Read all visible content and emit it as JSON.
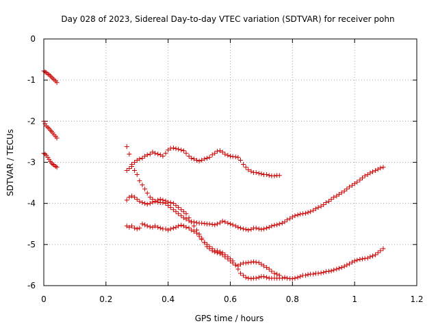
{
  "chart_data": {
    "type": "scatter",
    "title": "Day 028 of 2023, Sidereal Day-to-day VTEC variation (SDTVAR) for receiver pohn",
    "xlabel": "GPS time / hours",
    "ylabel": "SDTVAR / TECUs",
    "xlim": [
      0,
      1.2
    ],
    "ylim": [
      -6,
      0
    ],
    "xticks": [
      0,
      0.2,
      0.4,
      0.6,
      0.8,
      1,
      1.2
    ],
    "xtick_labels": [
      "0",
      "0.2",
      "0.4",
      "0.6",
      "0.8",
      "1",
      "1.2"
    ],
    "yticks": [
      0,
      -1,
      -2,
      -3,
      -4,
      -5,
      -6
    ],
    "ytick_labels": [
      "0",
      "-1",
      "-2",
      "-3",
      "-4",
      "-5",
      "-6"
    ],
    "grid": true,
    "marker": "+",
    "marker_color": "#cc0000",
    "series": [
      {
        "x": [
          0,
          0.004,
          0.008,
          0.013,
          0.017,
          0.021,
          0.025,
          0.029,
          0.033,
          0.038,
          0.042
        ],
        "y": [
          -0.78,
          -0.8,
          -0.82,
          -0.85,
          -0.87,
          -0.9,
          -0.93,
          -0.96,
          -0.99,
          -1.02,
          -1.06
        ]
      },
      {
        "x": [
          0,
          0.004,
          0.008,
          0.013,
          0.017,
          0.021,
          0.025,
          0.029,
          0.033,
          0.038,
          0.042
        ],
        "y": [
          -2.0,
          -2.06,
          -2.12,
          -2.15,
          -2.18,
          -2.22,
          -2.25,
          -2.29,
          -2.33,
          -2.37,
          -2.41
        ]
      },
      {
        "x": [
          0,
          0.004,
          0.008,
          0.013,
          0.017,
          0.021,
          0.025,
          0.029,
          0.033,
          0.038,
          0.042
        ],
        "y": [
          -2.78,
          -2.8,
          -2.83,
          -2.88,
          -2.93,
          -2.98,
          -3.02,
          -3.05,
          -3.07,
          -3.1,
          -3.12
        ]
      },
      {
        "x": [
          0.267,
          0.275,
          0.283,
          0.292,
          0.3,
          0.308,
          0.317,
          0.325,
          0.333,
          0.342,
          0.35,
          0.358,
          0.367,
          0.375,
          0.383,
          0.392,
          0.4,
          0.408,
          0.417,
          0.425,
          0.433,
          0.442,
          0.45,
          0.458,
          0.467,
          0.475,
          0.483,
          0.492,
          0.5,
          0.508,
          0.517,
          0.525,
          0.533,
          0.542,
          0.55,
          0.558,
          0.567,
          0.575,
          0.583,
          0.592,
          0.6,
          0.608,
          0.617,
          0.625,
          0.633,
          0.642,
          0.65,
          0.658,
          0.667,
          0.675,
          0.683,
          0.692,
          0.7,
          0.708,
          0.717,
          0.725,
          0.733,
          0.742,
          0.75,
          0.758
        ],
        "y": [
          -3.2,
          -3.15,
          -3.1,
          -3.0,
          -2.95,
          -2.92,
          -2.9,
          -2.85,
          -2.82,
          -2.8,
          -2.75,
          -2.78,
          -2.8,
          -2.82,
          -2.85,
          -2.78,
          -2.7,
          -2.66,
          -2.65,
          -2.67,
          -2.68,
          -2.7,
          -2.72,
          -2.78,
          -2.85,
          -2.9,
          -2.92,
          -2.95,
          -2.97,
          -2.95,
          -2.92,
          -2.9,
          -2.88,
          -2.82,
          -2.78,
          -2.73,
          -2.72,
          -2.75,
          -2.8,
          -2.83,
          -2.85,
          -2.86,
          -2.87,
          -2.88,
          -2.95,
          -3.05,
          -3.12,
          -3.18,
          -3.22,
          -3.25,
          -3.25,
          -3.27,
          -3.28,
          -3.3,
          -3.3,
          -3.32,
          -3.33,
          -3.33,
          -3.32,
          -3.32
        ]
      },
      {
        "x": [
          0.267,
          0.275,
          0.283,
          0.292,
          0.3,
          0.308,
          0.317,
          0.325,
          0.333,
          0.342,
          0.35,
          0.358,
          0.367,
          0.375,
          0.383,
          0.392,
          0.4,
          0.408,
          0.417,
          0.425,
          0.433,
          0.442,
          0.45,
          0.458,
          0.467,
          0.475,
          0.483,
          0.492,
          0.5,
          0.508,
          0.517,
          0.525,
          0.533,
          0.542,
          0.55,
          0.558,
          0.567,
          0.575,
          0.583,
          0.592,
          0.6,
          0.608,
          0.617,
          0.625,
          0.633,
          0.642,
          0.65,
          0.658,
          0.667,
          0.675,
          0.683,
          0.692,
          0.7,
          0.708,
          0.717,
          0.725,
          0.733,
          0.742,
          0.75,
          0.758,
          0.767,
          0.775,
          0.783,
          0.792,
          0.8,
          0.808,
          0.817,
          0.825,
          0.833,
          0.842,
          0.85,
          0.858,
          0.867,
          0.875,
          0.883,
          0.892,
          0.9,
          0.908,
          0.917,
          0.925,
          0.933,
          0.942,
          0.95,
          0.958,
          0.967,
          0.975,
          0.983,
          0.992,
          1.0,
          1.008,
          1.017,
          1.025,
          1.033,
          1.042,
          1.05,
          1.058,
          1.067,
          1.075,
          1.083,
          1.092
        ],
        "y": [
          -2.62,
          -2.8,
          -3.05,
          -3.2,
          -3.3,
          -3.45,
          -3.55,
          -3.65,
          -3.75,
          -3.85,
          -3.9,
          -3.95,
          -3.97,
          -3.98,
          -3.98,
          -4.0,
          -4.05,
          -4.1,
          -4.15,
          -4.2,
          -4.25,
          -4.3,
          -4.35,
          -4.38,
          -4.42,
          -4.45,
          -4.45,
          -4.47,
          -4.48,
          -4.48,
          -4.49,
          -4.5,
          -4.5,
          -4.51,
          -4.52,
          -4.5,
          -4.47,
          -4.43,
          -4.45,
          -4.48,
          -4.5,
          -4.52,
          -4.55,
          -4.58,
          -4.6,
          -4.62,
          -4.63,
          -4.65,
          -4.63,
          -4.6,
          -4.6,
          -4.62,
          -4.63,
          -4.62,
          -4.6,
          -4.58,
          -4.55,
          -4.53,
          -4.52,
          -4.5,
          -4.48,
          -4.45,
          -4.4,
          -4.37,
          -4.33,
          -4.3,
          -4.28,
          -4.26,
          -4.25,
          -4.24,
          -4.22,
          -4.2,
          -4.17,
          -4.13,
          -4.1,
          -4.07,
          -4.03,
          -3.98,
          -3.95,
          -3.9,
          -3.85,
          -3.82,
          -3.78,
          -3.74,
          -3.7,
          -3.65,
          -3.6,
          -3.56,
          -3.52,
          -3.48,
          -3.43,
          -3.38,
          -3.33,
          -3.3,
          -3.26,
          -3.23,
          -3.2,
          -3.17,
          -3.14,
          -3.12
        ]
      },
      {
        "x": [
          0.267,
          0.275,
          0.283,
          0.292,
          0.3,
          0.308,
          0.317,
          0.325,
          0.333,
          0.342,
          0.35,
          0.358,
          0.367,
          0.375,
          0.383,
          0.392,
          0.4,
          0.408,
          0.417,
          0.425,
          0.433,
          0.442,
          0.45,
          0.458,
          0.467,
          0.475,
          0.483,
          0.492,
          0.5,
          0.508,
          0.517,
          0.525,
          0.533,
          0.542,
          0.55,
          0.558,
          0.567,
          0.575,
          0.583,
          0.592,
          0.6,
          0.608,
          0.617,
          0.625,
          0.633,
          0.642,
          0.65,
          0.658,
          0.667,
          0.675,
          0.683,
          0.692,
          0.7,
          0.708,
          0.717,
          0.725,
          0.733,
          0.742,
          0.75,
          0.758
        ],
        "y": [
          -3.92,
          -3.85,
          -3.82,
          -3.85,
          -3.9,
          -3.95,
          -3.98,
          -4.0,
          -4.02,
          -4.0,
          -3.97,
          -3.95,
          -3.92,
          -3.9,
          -3.92,
          -3.94,
          -3.97,
          -3.98,
          -4.0,
          -4.05,
          -4.1,
          -4.15,
          -4.2,
          -4.25,
          -4.35,
          -4.45,
          -4.55,
          -4.65,
          -4.75,
          -4.85,
          -4.95,
          -5.05,
          -5.1,
          -5.15,
          -5.18,
          -5.2,
          -5.22,
          -5.25,
          -5.3,
          -5.35,
          -5.4,
          -5.45,
          -5.5,
          -5.52,
          -5.48,
          -5.45,
          -5.45,
          -5.44,
          -5.43,
          -5.42,
          -5.43,
          -5.44,
          -5.48,
          -5.52,
          -5.56,
          -5.6,
          -5.65,
          -5.7,
          -5.72,
          -5.75
        ]
      },
      {
        "x": [
          0.267,
          0.275,
          0.283,
          0.292,
          0.3,
          0.308,
          0.317,
          0.325,
          0.333,
          0.342,
          0.35,
          0.358,
          0.367,
          0.375,
          0.383,
          0.392,
          0.4,
          0.408,
          0.417,
          0.425,
          0.433,
          0.442,
          0.45,
          0.458,
          0.467,
          0.475,
          0.483,
          0.492,
          0.5,
          0.508,
          0.517,
          0.525,
          0.533,
          0.542,
          0.55,
          0.558,
          0.567,
          0.575,
          0.583,
          0.592,
          0.6,
          0.608,
          0.617,
          0.625,
          0.633,
          0.642,
          0.65,
          0.658,
          0.667,
          0.675,
          0.683,
          0.692,
          0.7,
          0.708,
          0.717,
          0.725,
          0.733,
          0.742,
          0.75,
          0.758,
          0.767,
          0.775,
          0.783,
          0.792,
          0.8,
          0.808,
          0.817,
          0.825,
          0.833,
          0.842,
          0.85,
          0.858,
          0.867,
          0.875,
          0.883,
          0.892,
          0.9,
          0.908,
          0.917,
          0.925,
          0.933,
          0.942,
          0.95,
          0.958,
          0.967,
          0.975,
          0.983,
          0.992,
          1.0,
          1.008,
          1.017,
          1.025,
          1.033,
          1.042,
          1.05,
          1.058,
          1.067,
          1.075,
          1.083,
          1.092
        ],
        "y": [
          -4.55,
          -4.58,
          -4.55,
          -4.6,
          -4.62,
          -4.6,
          -4.5,
          -4.52,
          -4.55,
          -4.57,
          -4.58,
          -4.55,
          -4.58,
          -4.6,
          -4.62,
          -4.62,
          -4.65,
          -4.62,
          -4.6,
          -4.58,
          -4.55,
          -4.53,
          -4.55,
          -4.58,
          -4.6,
          -4.65,
          -4.68,
          -4.72,
          -4.8,
          -4.88,
          -4.95,
          -5.0,
          -5.05,
          -5.1,
          -5.15,
          -5.15,
          -5.18,
          -5.2,
          -5.25,
          -5.3,
          -5.35,
          -5.4,
          -5.5,
          -5.6,
          -5.7,
          -5.75,
          -5.8,
          -5.82,
          -5.83,
          -5.82,
          -5.82,
          -5.8,
          -5.78,
          -5.78,
          -5.8,
          -5.82,
          -5.82,
          -5.82,
          -5.82,
          -5.82,
          -5.82,
          -5.8,
          -5.82,
          -5.83,
          -5.83,
          -5.82,
          -5.8,
          -5.78,
          -5.75,
          -5.75,
          -5.73,
          -5.72,
          -5.72,
          -5.7,
          -5.7,
          -5.69,
          -5.68,
          -5.66,
          -5.65,
          -5.64,
          -5.62,
          -5.6,
          -5.58,
          -5.56,
          -5.53,
          -5.5,
          -5.47,
          -5.43,
          -5.4,
          -5.38,
          -5.36,
          -5.35,
          -5.34,
          -5.33,
          -5.3,
          -5.28,
          -5.25,
          -5.2,
          -5.15,
          -5.1
        ]
      }
    ]
  }
}
